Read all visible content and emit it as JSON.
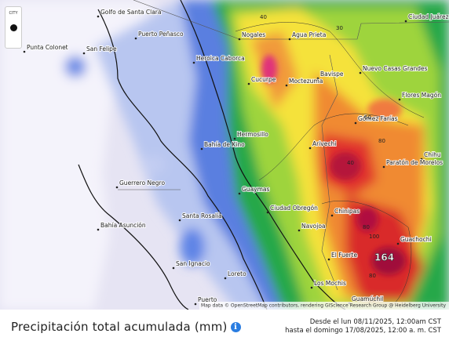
{
  "map": {
    "cities": [
      "Golfo de Santa Clara",
      "Puerto Peñasco",
      "Punta Colonet",
      "San Felipe",
      "Heroica Caborca",
      "Nogales",
      "Agua Prieta",
      "Ciudad Juárez",
      "Cucurpe",
      "Bavispe",
      "Nuevo Casas Grandes",
      "Moctezuma",
      "Flores Magón",
      "Hermosillo",
      "Gómez Farías",
      "Arivechi",
      "Bahía de Kino",
      "Chihu",
      "Paratón de Morelos",
      "Guaymas",
      "Guerrero Negro",
      "Ciudad Obregón",
      "Santa Rosalía",
      "Chinipas",
      "Navojoa",
      "Bahía Asunción",
      "Guachochi",
      "El Fuerte",
      "San Ignacio",
      "Loreto",
      "Los Mochis",
      "Puerto",
      "Guamúchil"
    ],
    "contour_labels": [
      "40",
      "30",
      "60",
      "40",
      "80",
      "80",
      "100",
      "80"
    ],
    "max_label": "164",
    "attribution": "Map data © OpenStreetMap contributors, rendering GIScience Research Group @ Heidelberg University"
  },
  "control": {
    "label": "CITY"
  },
  "legend": {
    "title": "Precipitación total acumulada (mm)",
    "info": "i",
    "from": "Desde el lun 08/11/2025, 12:00am CST",
    "to": "hasta el domingo 17/08/2025, 12:00 a. m. CST"
  }
}
